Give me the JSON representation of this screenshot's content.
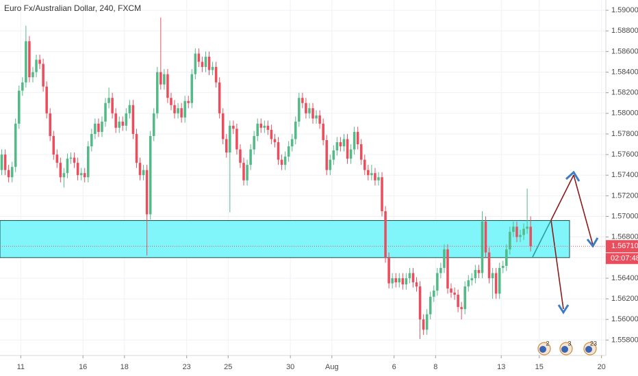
{
  "chart_data": {
    "type": "candlestick",
    "title": "Euro Fx/Australian Dollar, 240, FXCM",
    "up_color": "#53b987",
    "down_color": "#eb4d5c",
    "open": [
      1.5745,
      1.576,
      1.5745,
      1.5738,
      1.5748,
      1.579,
      1.5822,
      1.583,
      1.587,
      1.5835,
      1.584,
      1.5852,
      1.5848,
      1.5826,
      1.58,
      1.5778,
      1.576,
      1.5752,
      1.5738,
      1.5742,
      1.5756,
      1.5757,
      1.5752,
      1.574,
      1.5742,
      1.5738,
      1.5768,
      1.578,
      1.579,
      1.5782,
      1.5792,
      1.581,
      1.5815,
      1.58,
      1.5786,
      1.5792,
      1.5788,
      1.58,
      1.5808,
      1.578,
      1.5752,
      1.574,
      1.5745,
      1.5702,
      1.5778,
      1.58,
      1.584,
      1.5828,
      1.5838,
      1.5815,
      1.5808,
      1.58,
      1.5805,
      1.5796,
      1.5812,
      1.581,
      1.5838,
      1.5858,
      1.585,
      1.5845,
      1.5855,
      1.5842,
      1.5845,
      1.583,
      1.58,
      1.5775,
      1.5762,
      1.5788,
      1.5785,
      1.5765,
      1.5752,
      1.5735,
      1.575,
      1.5765,
      1.5778,
      1.579,
      1.5786,
      1.5788,
      1.5784,
      1.5775,
      1.5772,
      1.5755,
      1.575,
      1.5758,
      1.5768,
      1.5775,
      1.5792,
      1.5815,
      1.581,
      1.58,
      1.5805,
      1.5795,
      1.5798,
      1.579,
      1.5774,
      1.5745,
      1.5755,
      1.5764,
      1.5772,
      1.5768,
      1.5775,
      1.5756,
      1.5765,
      1.5782,
      1.577,
      1.5755,
      1.5745,
      1.574,
      1.5742,
      1.5735,
      1.5738,
      1.5705,
      1.566,
      1.5635,
      1.564,
      1.5636,
      1.564,
      1.5634,
      1.564,
      1.5645,
      1.5636,
      1.5632,
      1.56,
      1.559,
      1.5605,
      1.5622,
      1.5628,
      1.5645,
      1.565,
      1.5668,
      1.563,
      1.5626,
      1.5624,
      1.5612,
      1.561,
      1.5632,
      1.5638,
      1.564,
      1.5648,
      1.5645,
      1.5695,
      1.5665,
      1.564,
      1.5645,
      1.5625,
      1.565,
      1.5652,
      1.5668,
      1.5685,
      1.569,
      1.568,
      1.5682,
      1.5688,
      1.569
    ],
    "high": [
      1.5765,
      1.5765,
      1.575,
      1.5753,
      1.5795,
      1.5827,
      1.5835,
      1.5885,
      1.5875,
      1.5845,
      1.5857,
      1.5857,
      1.5853,
      1.5831,
      1.5805,
      1.5783,
      1.5765,
      1.5757,
      1.5747,
      1.5761,
      1.5762,
      1.5762,
      1.5757,
      1.5747,
      1.5747,
      1.5773,
      1.5785,
      1.5795,
      1.5795,
      1.5797,
      1.5815,
      1.5825,
      1.582,
      1.5805,
      1.5797,
      1.5797,
      1.5805,
      1.5813,
      1.5813,
      1.5785,
      1.5757,
      1.575,
      1.575,
      1.5783,
      1.5805,
      1.5845,
      1.5893,
      1.5843,
      1.5843,
      1.582,
      1.5813,
      1.581,
      1.581,
      1.5817,
      1.5817,
      1.5843,
      1.5863,
      1.5863,
      1.5855,
      1.586,
      1.586,
      1.585,
      1.585,
      1.5835,
      1.5805,
      1.578,
      1.5793,
      1.5793,
      1.579,
      1.577,
      1.5757,
      1.5755,
      1.577,
      1.5783,
      1.5795,
      1.5795,
      1.5793,
      1.5793,
      1.5789,
      1.578,
      1.5777,
      1.576,
      1.5763,
      1.5773,
      1.578,
      1.5797,
      1.582,
      1.582,
      1.5815,
      1.581,
      1.581,
      1.5803,
      1.5803,
      1.5795,
      1.5779,
      1.576,
      1.5769,
      1.5777,
      1.5777,
      1.578,
      1.578,
      1.577,
      1.5787,
      1.5787,
      1.5775,
      1.576,
      1.575,
      1.575,
      1.5747,
      1.5743,
      1.5743,
      1.571,
      1.5665,
      1.5645,
      1.5645,
      1.5645,
      1.5645,
      1.5645,
      1.565,
      1.565,
      1.5641,
      1.5637,
      1.5605,
      1.561,
      1.5627,
      1.5633,
      1.565,
      1.5655,
      1.5673,
      1.5673,
      1.5635,
      1.5631,
      1.5629,
      1.5617,
      1.5637,
      1.5643,
      1.5645,
      1.5653,
      1.5653,
      1.5705,
      1.57,
      1.567,
      1.565,
      1.565,
      1.5655,
      1.5657,
      1.5673,
      1.569,
      1.5695,
      1.5695,
      1.5687,
      1.5693,
      1.5727,
      1.57
    ],
    "low": [
      1.574,
      1.574,
      1.5733,
      1.5733,
      1.5743,
      1.5785,
      1.5817,
      1.5825,
      1.583,
      1.583,
      1.5835,
      1.5843,
      1.5821,
      1.5795,
      1.5773,
      1.5755,
      1.5747,
      1.5733,
      1.5728,
      1.5737,
      1.5751,
      1.5747,
      1.5735,
      1.5735,
      1.5733,
      1.5733,
      1.5763,
      1.5775,
      1.5777,
      1.5777,
      1.5787,
      1.5805,
      1.5795,
      1.5781,
      1.5781,
      1.5783,
      1.5783,
      1.5795,
      1.5775,
      1.5747,
      1.5735,
      1.5735,
      1.5662,
      1.5697,
      1.5773,
      1.5795,
      1.5823,
      1.5823,
      1.581,
      1.5803,
      1.5795,
      1.5795,
      1.5791,
      1.5791,
      1.5805,
      1.5805,
      1.5833,
      1.5845,
      1.584,
      1.584,
      1.5837,
      1.5837,
      1.5825,
      1.5795,
      1.577,
      1.5757,
      1.5704,
      1.578,
      1.576,
      1.5747,
      1.573,
      1.573,
      1.5745,
      1.576,
      1.5773,
      1.5781,
      1.5781,
      1.5779,
      1.577,
      1.5767,
      1.575,
      1.5745,
      1.5745,
      1.5753,
      1.5763,
      1.577,
      1.5787,
      1.5805,
      1.5795,
      1.5795,
      1.579,
      1.579,
      1.5785,
      1.5769,
      1.574,
      1.574,
      1.575,
      1.5759,
      1.5763,
      1.5763,
      1.5751,
      1.5751,
      1.576,
      1.5765,
      1.575,
      1.574,
      1.5735,
      1.5735,
      1.573,
      1.573,
      1.57,
      1.5655,
      1.563,
      1.563,
      1.5631,
      1.5631,
      1.5629,
      1.5629,
      1.5635,
      1.5631,
      1.5627,
      1.5581,
      1.5585,
      1.5585,
      1.56,
      1.5617,
      1.5623,
      1.564,
      1.5645,
      1.5625,
      1.5621,
      1.5619,
      1.5607,
      1.56,
      1.5605,
      1.5627,
      1.5633,
      1.5635,
      1.564,
      1.564,
      1.566,
      1.5635,
      1.562,
      1.562,
      1.562,
      1.5645,
      1.5647,
      1.5663,
      1.568,
      1.5675,
      1.5675,
      1.5677,
      1.5683,
      1.5666
    ],
    "close": [
      1.576,
      1.5745,
      1.5738,
      1.5748,
      1.579,
      1.5822,
      1.583,
      1.587,
      1.5835,
      1.584,
      1.5852,
      1.5848,
      1.5826,
      1.58,
      1.5778,
      1.576,
      1.5752,
      1.5738,
      1.5742,
      1.5756,
      1.5757,
      1.5752,
      1.574,
      1.5742,
      1.5738,
      1.5768,
      1.578,
      1.579,
      1.5782,
      1.5792,
      1.581,
      1.5815,
      1.58,
      1.5786,
      1.5792,
      1.5788,
      1.58,
      1.5808,
      1.578,
      1.5752,
      1.574,
      1.5745,
      1.5702,
      1.5778,
      1.58,
      1.584,
      1.5828,
      1.5838,
      1.5815,
      1.5808,
      1.58,
      1.5805,
      1.5796,
      1.5812,
      1.581,
      1.5838,
      1.5858,
      1.585,
      1.5845,
      1.5855,
      1.5842,
      1.5845,
      1.583,
      1.58,
      1.5775,
      1.5762,
      1.5788,
      1.5785,
      1.5765,
      1.5752,
      1.5735,
      1.575,
      1.5765,
      1.5778,
      1.579,
      1.5786,
      1.5788,
      1.5784,
      1.5775,
      1.5772,
      1.5755,
      1.575,
      1.5758,
      1.5768,
      1.5775,
      1.5792,
      1.5815,
      1.581,
      1.58,
      1.5805,
      1.5795,
      1.5798,
      1.579,
      1.5774,
      1.5745,
      1.5755,
      1.5764,
      1.5772,
      1.5768,
      1.5775,
      1.5756,
      1.5765,
      1.5782,
      1.577,
      1.5755,
      1.5745,
      1.574,
      1.5742,
      1.5735,
      1.5738,
      1.5705,
      1.566,
      1.5635,
      1.564,
      1.5636,
      1.564,
      1.5634,
      1.564,
      1.5645,
      1.5636,
      1.5632,
      1.56,
      1.559,
      1.5605,
      1.5622,
      1.5628,
      1.5645,
      1.565,
      1.5668,
      1.563,
      1.5626,
      1.5624,
      1.5612,
      1.561,
      1.5632,
      1.5638,
      1.564,
      1.5648,
      1.5645,
      1.5695,
      1.5665,
      1.564,
      1.5645,
      1.5625,
      1.565,
      1.5652,
      1.5668,
      1.5685,
      1.569,
      1.568,
      1.5682,
      1.5688,
      1.569,
      1.5671
    ],
    "xlim": [
      -0.5,
      174.75
    ],
    "xticks": [
      {
        "value": 5.5,
        "label": "11"
      },
      {
        "value": 23.5,
        "label": "16"
      },
      {
        "value": 35.5,
        "label": "18"
      },
      {
        "value": 53.5,
        "label": "23"
      },
      {
        "value": 65.5,
        "label": "25"
      },
      {
        "value": 83.5,
        "label": "30"
      },
      {
        "value": 95.5,
        "label": "Aug"
      },
      {
        "value": 113.5,
        "label": "6"
      },
      {
        "value": 125.5,
        "label": "8"
      },
      {
        "value": 144.5,
        "label": "13"
      },
      {
        "value": 155.5,
        "label": "15"
      },
      {
        "value": 173.5,
        "label": "20"
      }
    ],
    "ylim": [
      1.5565,
      1.591
    ],
    "yticks": [
      {
        "value": 1.558,
        "label": "1.55800"
      },
      {
        "value": 1.56,
        "label": "1.56000"
      },
      {
        "value": 1.562,
        "label": "1.56200"
      },
      {
        "value": 1.564,
        "label": "1.56400"
      },
      {
        "value": 1.566,
        "label": "1.56600"
      },
      {
        "value": 1.568,
        "label": "1.56800"
      },
      {
        "value": 1.57,
        "label": "1.57000"
      },
      {
        "value": 1.572,
        "label": "1.57200"
      },
      {
        "value": 1.574,
        "label": "1.57400"
      },
      {
        "value": 1.576,
        "label": "1.57600"
      },
      {
        "value": 1.578,
        "label": "1.57800"
      },
      {
        "value": 1.58,
        "label": "1.58000"
      },
      {
        "value": 1.582,
        "label": "1.58200"
      },
      {
        "value": 1.584,
        "label": "1.58400"
      },
      {
        "value": 1.586,
        "label": "1.58600"
      },
      {
        "value": 1.588,
        "label": "1.58800"
      },
      {
        "value": 1.59,
        "label": "1.59000"
      }
    ],
    "grid": true,
    "zone": [
      1.566,
      1.5696
    ],
    "last_price": {
      "value": 1.5671,
      "label": "1.56710"
    },
    "countdown": "02:07:48",
    "events": [
      "2",
      "3",
      "23"
    ]
  }
}
